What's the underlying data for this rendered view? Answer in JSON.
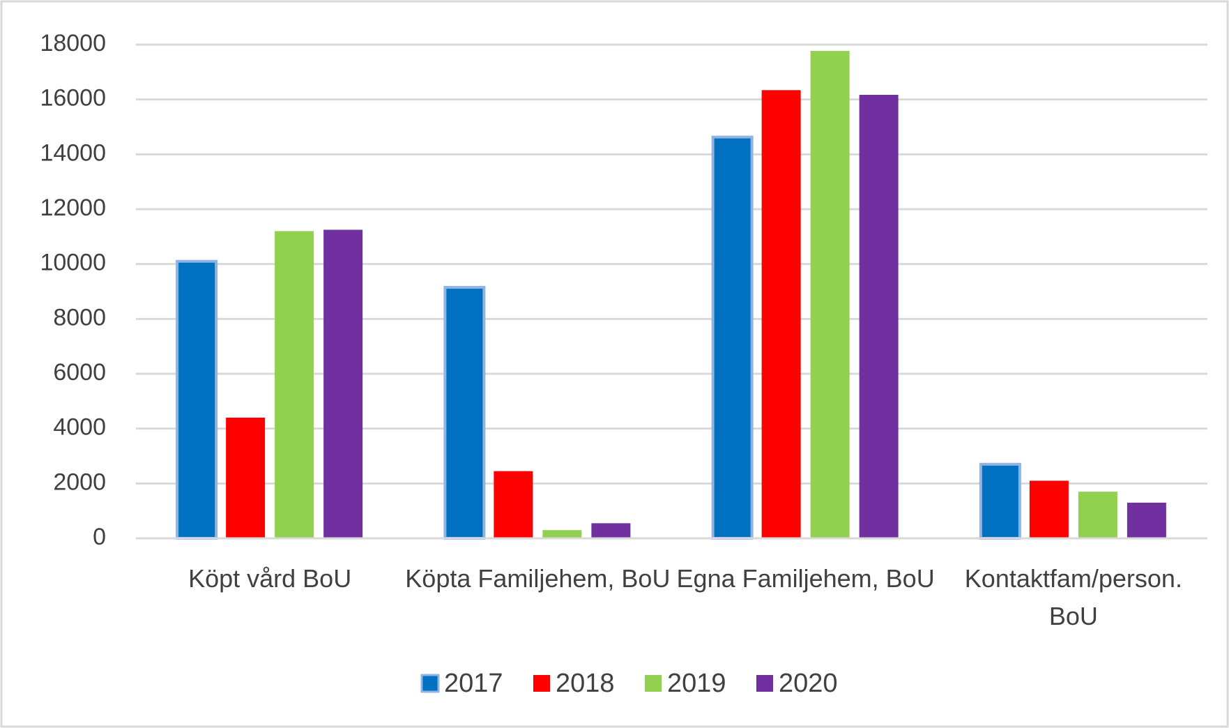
{
  "chart_data": {
    "type": "bar",
    "categories": [
      "Köpt vård BoU",
      "Köpta Familjehem, BoU",
      "Egna Familjehem, BoU",
      "Kontaktfam/person. BoU"
    ],
    "series": [
      {
        "name": "2017",
        "color": "#0070c0",
        "values": [
          10100,
          9150,
          14630,
          2700
        ]
      },
      {
        "name": "2018",
        "color": "#ff0000",
        "values": [
          4400,
          2450,
          16340,
          2100
        ]
      },
      {
        "name": "2019",
        "color": "#92d050",
        "values": [
          11200,
          300,
          17770,
          1700
        ]
      },
      {
        "name": "2020",
        "color": "#7030a0",
        "values": [
          11250,
          550,
          16170,
          1300
        ]
      }
    ],
    "ylim": [
      0,
      18000
    ],
    "yticks": [
      0,
      2000,
      4000,
      6000,
      8000,
      10000,
      12000,
      14000,
      16000,
      18000
    ],
    "grid": true,
    "legend": "bottom"
  }
}
